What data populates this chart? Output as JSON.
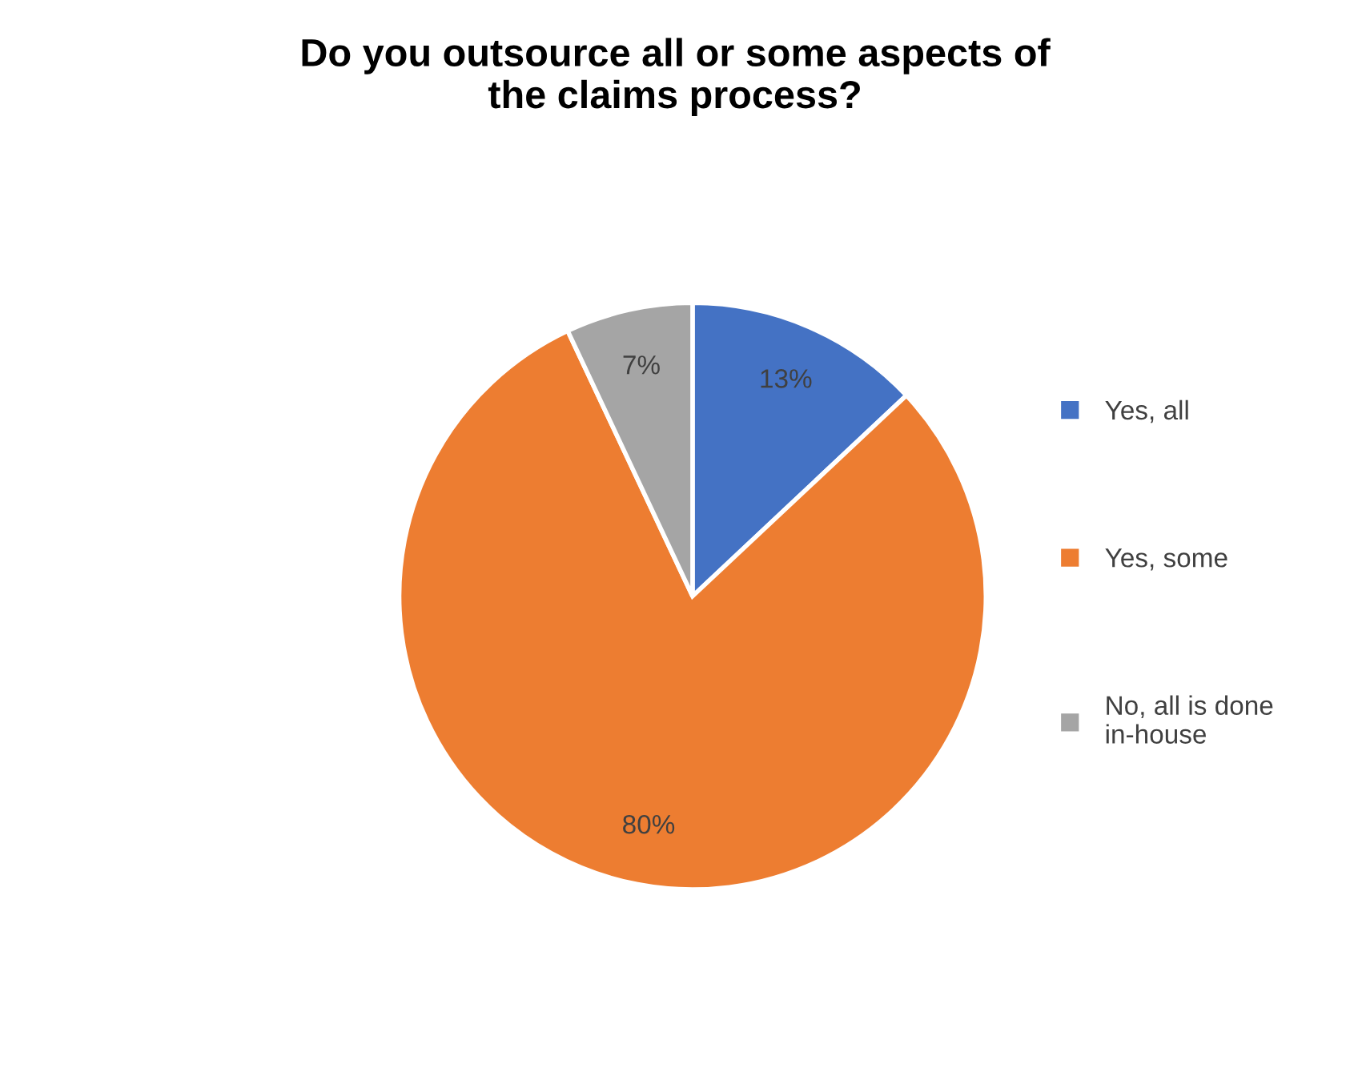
{
  "chart_data": {
    "type": "pie",
    "title": "Do you outsource all or some aspects of\nthe claims process?",
    "categories": [
      "Yes, all",
      "Yes, some",
      "No, all is done\nin-house"
    ],
    "values": [
      13,
      80,
      7
    ],
    "colors": [
      "#4472c4",
      "#ed7d31",
      "#a5a5a5"
    ],
    "value_labels": [
      "13%",
      "80%",
      "7%"
    ],
    "legend": "right"
  }
}
